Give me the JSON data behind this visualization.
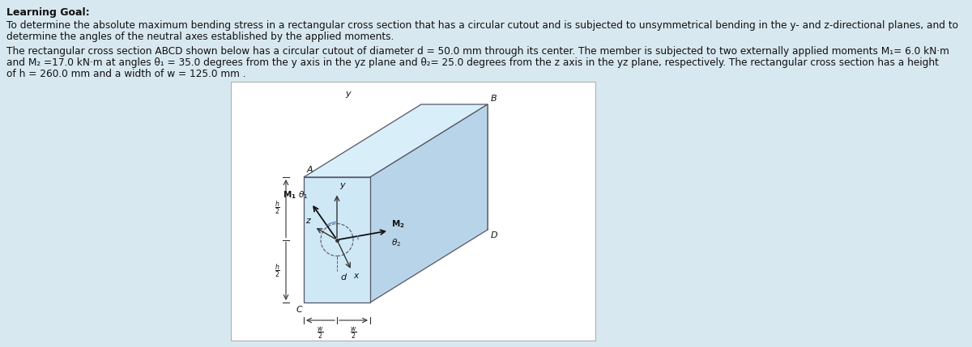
{
  "bg_color": "#d8e8f0",
  "text_color": "#111111",
  "title": "Learning Goal:",
  "para1_line1": "To determine the absolute maximum bending stress in a rectangular cross section that has a circular cutout and is subjected to unsymmetrical bending in the y- and z-directional planes, and to",
  "para1_line2": "determine the angles of the neutral axes established by the applied moments.",
  "para2_line1": "The rectangular cross section ABCD shown below has a circular cutout of diameter d = 50.0 mm through its center. The member is subjected to two externally applied moments M₁= 6.0 kN·m",
  "para2_line2": "and M₂ =17.0 kN·m at angles θ₁ = 35.0 degrees from the y axis in the yz plane and θ₂= 25.0 degrees from the z axis in the yz plane, respectively. The rectangular cross section has a height",
  "para2_line3": "of h = 260.0 mm and a width of w = 125.0 mm .",
  "diagram_bg": "#ffffff",
  "box_face_front": "#cfe8f5",
  "box_face_top": "#d8eef8",
  "box_face_right": "#b8d4e8",
  "box_edge_color": "#555566",
  "dim_color": "#333333",
  "arrow_color": "#222222",
  "moment_color": "#111111",
  "axis_color": "#333333",
  "circle_arc_color": "#5588bb"
}
